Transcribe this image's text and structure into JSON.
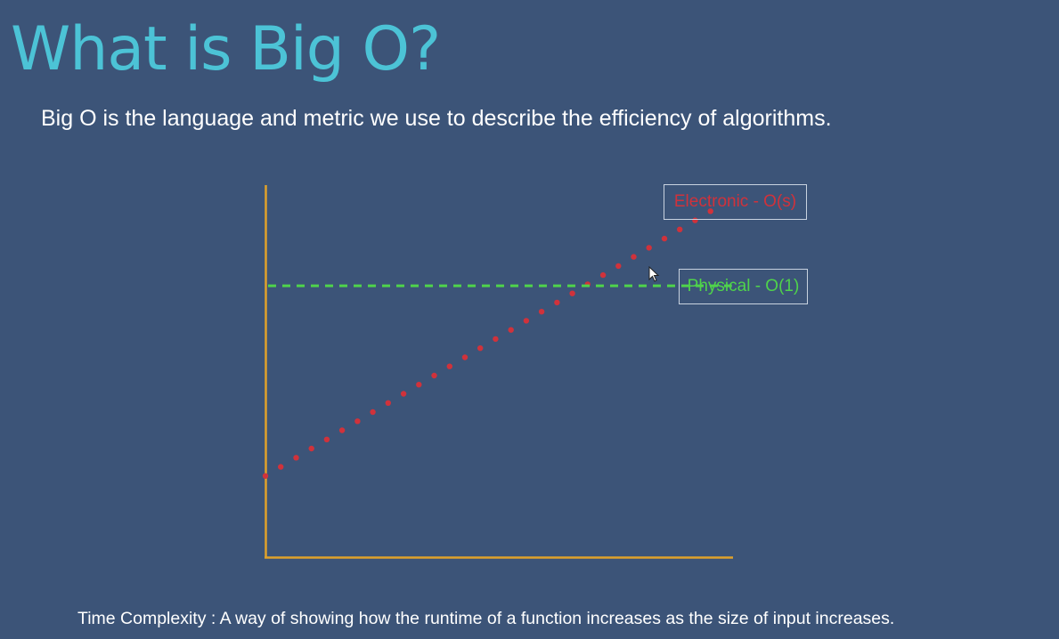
{
  "slide": {
    "title": "What is Big O?",
    "subtitle": "Big O is the language and metric we use to describe the efficiency of algorithms.",
    "footer": "Time Complexity : A way of showing how the runtime of a function increases as the size of input increases."
  },
  "colors": {
    "background": "#3c5478",
    "title": "#4cc3d6",
    "axis": "#e0a22a",
    "electronic": "#d0323b",
    "physical": "#4fd34b"
  },
  "chart_data": {
    "type": "line",
    "xlim": [
      0,
      1
    ],
    "ylim": [
      0,
      1
    ],
    "grid": false,
    "series": [
      {
        "name": "Electronic - O(s)",
        "style": "dotted",
        "color": "#d0323b",
        "x": [
          0,
          0.83
        ],
        "y": [
          0.22,
          0.93
        ]
      },
      {
        "name": "Physical - O(1)",
        "style": "dashed",
        "color": "#4fd34b",
        "x": [
          0,
          0.87
        ],
        "y": [
          0.73,
          0.73
        ]
      }
    ]
  }
}
